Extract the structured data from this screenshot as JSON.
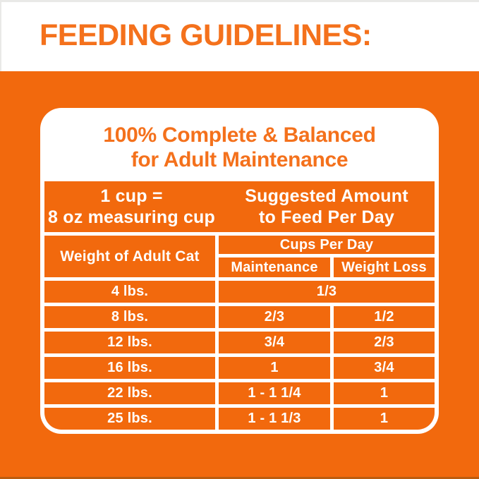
{
  "colors": {
    "orange_bg": "#F2690D",
    "orange_heading": "#F4711C",
    "white": "#FFFFFF",
    "edge_top": "#E9E9E7",
    "edge_bottom": "#BC5C0F"
  },
  "banner": {
    "title": "FEEDING GUIDELINES:"
  },
  "card": {
    "heading_line1": "100% Complete & Balanced",
    "heading_line2": "for Adult Maintenance",
    "band": {
      "left_line1": "1 cup =",
      "left_line2": "8 oz measuring cup",
      "right_line1": "Suggested Amount",
      "right_line2": "to Feed Per Day"
    },
    "table": {
      "col1_header": "Weight of Adult Cat",
      "group_header": "Cups Per Day",
      "sub_headers": [
        "Maintenance",
        "Weight Loss"
      ],
      "rows": [
        {
          "weight": "4 lbs.",
          "maintenance": "1/3",
          "weight_loss": ""
        },
        {
          "weight": "8 lbs.",
          "maintenance": "2/3",
          "weight_loss": "1/2"
        },
        {
          "weight": "12 lbs.",
          "maintenance": "3/4",
          "weight_loss": "2/3"
        },
        {
          "weight": "16 lbs.",
          "maintenance": "1",
          "weight_loss": "3/4"
        },
        {
          "weight": "22 lbs.",
          "maintenance": "1 - 1 1/4",
          "weight_loss": "1"
        },
        {
          "weight": "25 lbs.",
          "maintenance": "1 - 1 1/3",
          "weight_loss": "1"
        }
      ]
    }
  }
}
